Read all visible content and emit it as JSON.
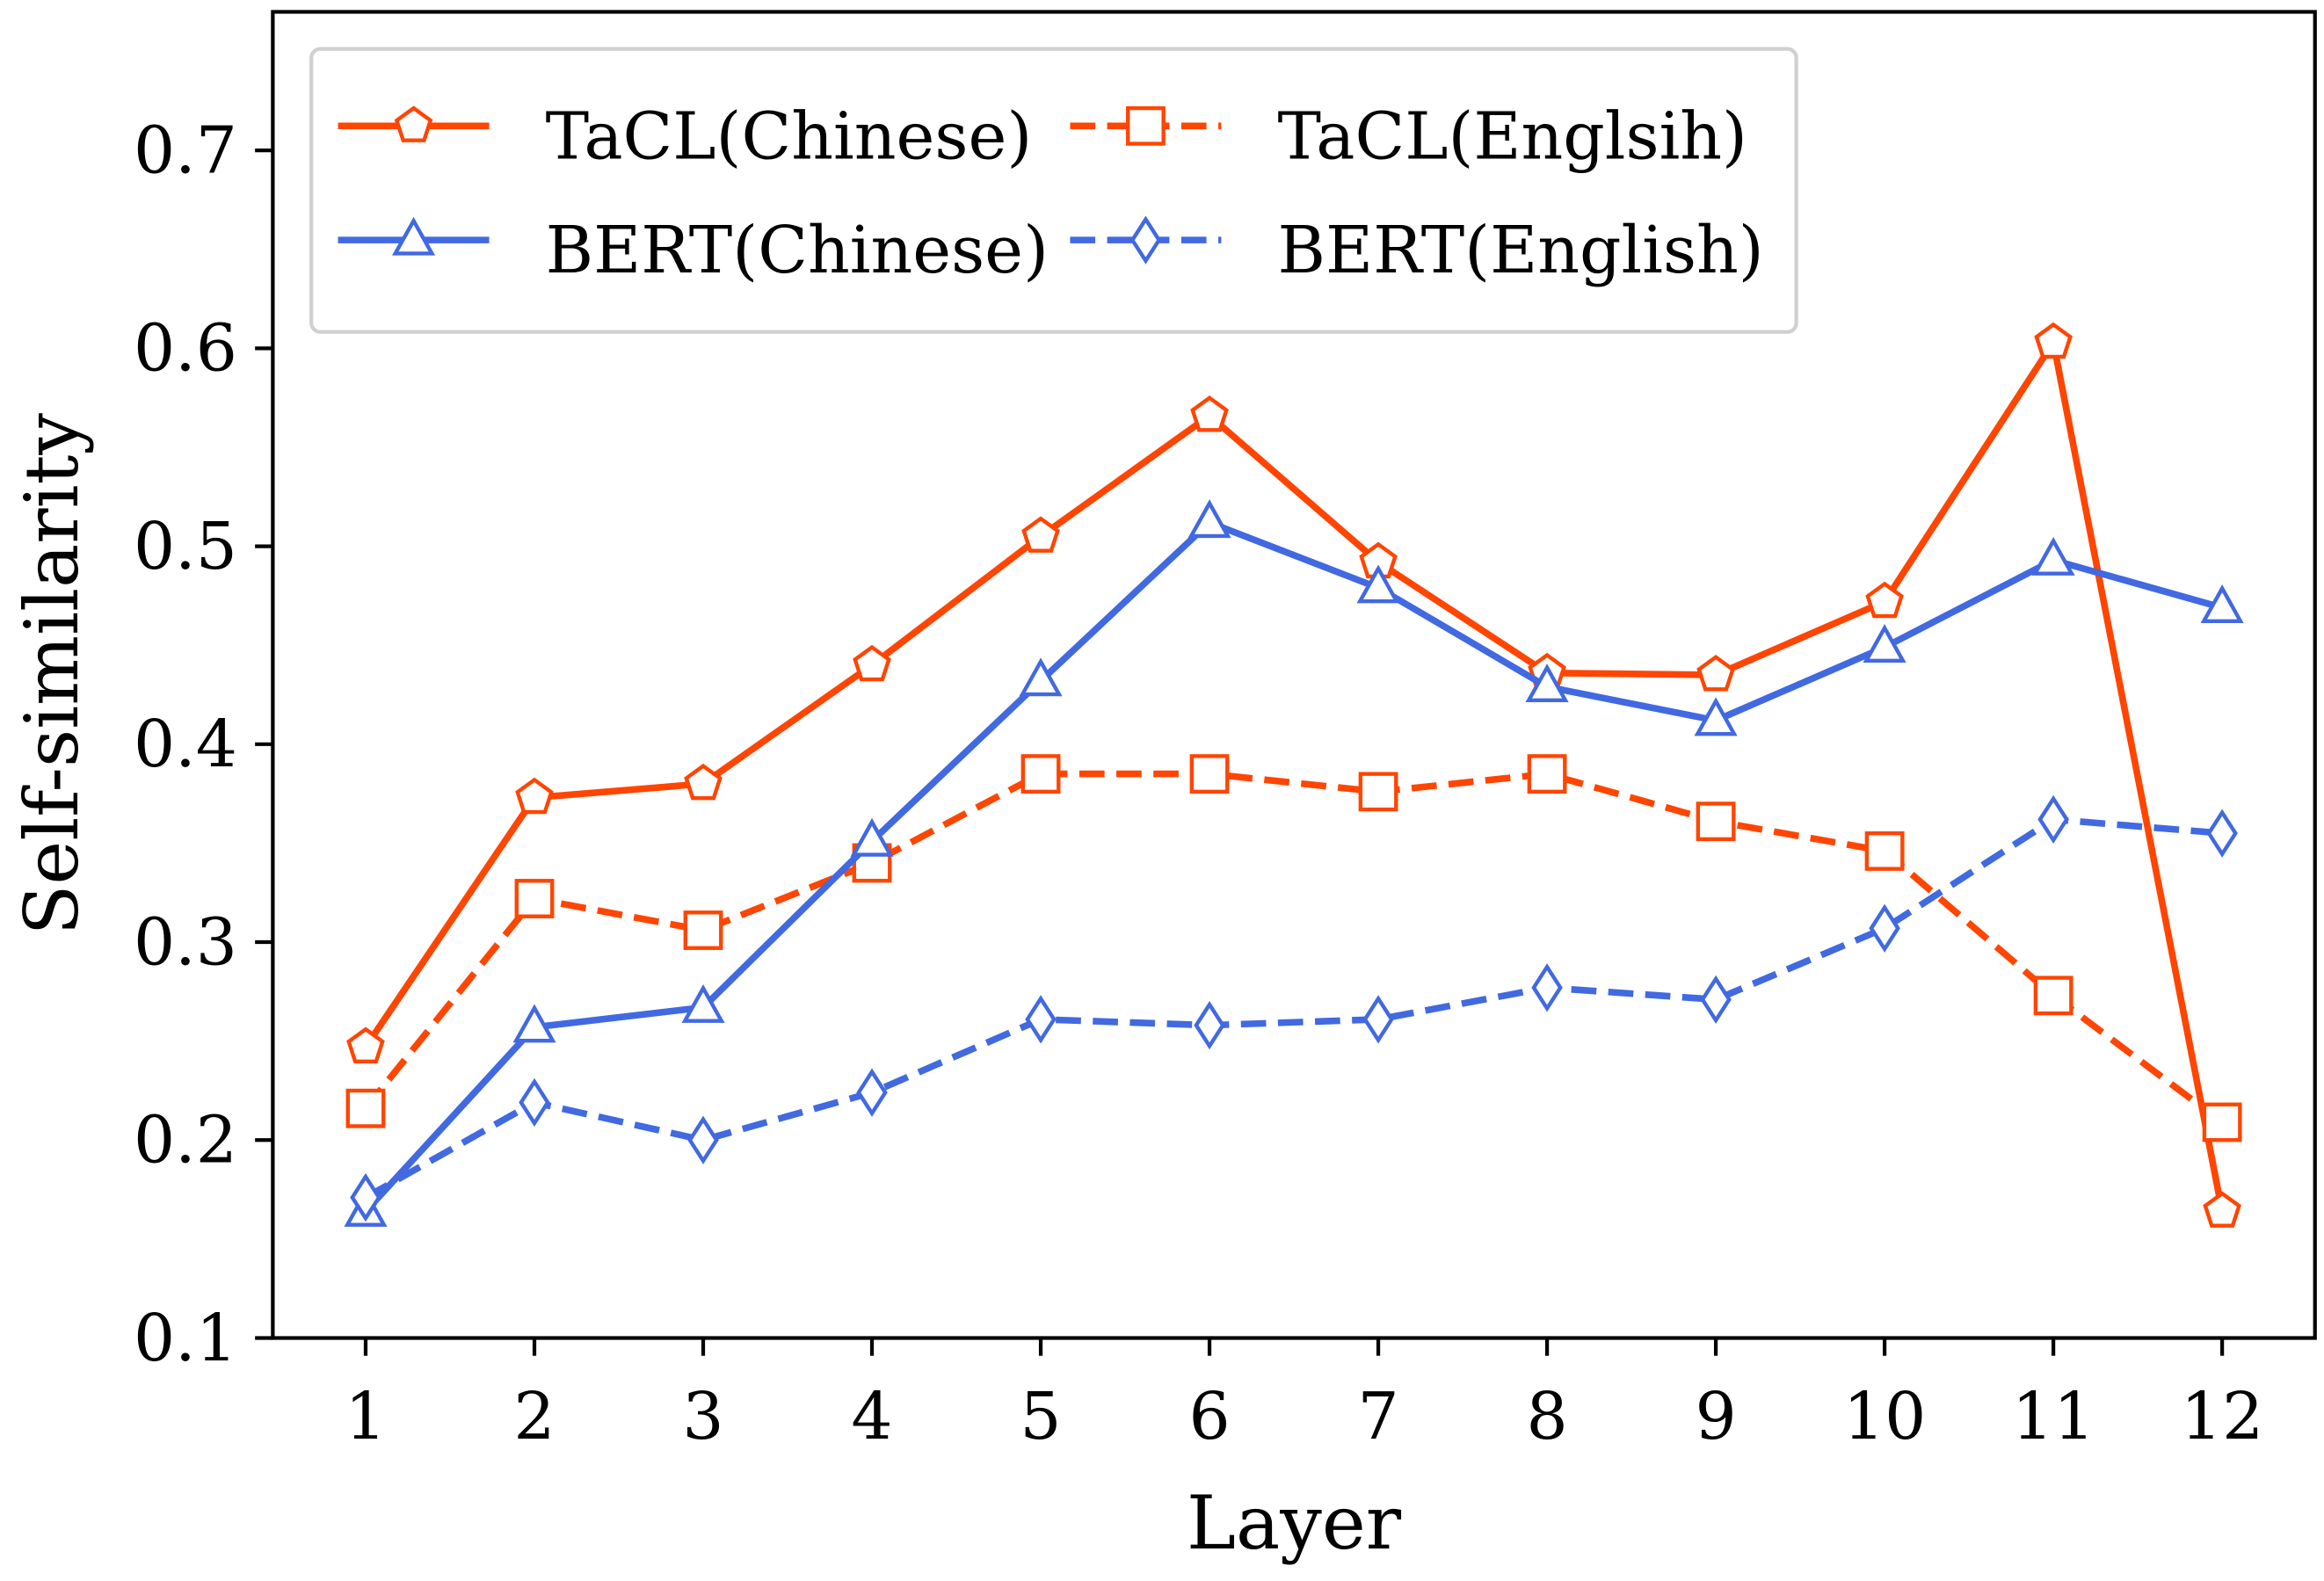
{
  "chart_data": {
    "type": "line",
    "title": "",
    "xlabel": "Layer",
    "ylabel": "Self-similarity",
    "x": [
      1,
      2,
      3,
      4,
      5,
      6,
      7,
      8,
      9,
      10,
      11,
      12
    ],
    "xticks": [
      "1",
      "2",
      "3",
      "4",
      "5",
      "6",
      "7",
      "8",
      "9",
      "10",
      "11",
      "12"
    ],
    "yticks": [
      "0.1",
      "0.2",
      "0.3",
      "0.4",
      "0.5",
      "0.6",
      "0.7"
    ],
    "ytick_values": [
      0.1,
      0.2,
      0.3,
      0.4,
      0.5,
      0.6,
      0.7
    ],
    "xlim": [
      0.45,
      12.55
    ],
    "ylim": [
      0.1,
      0.77
    ],
    "grid": false,
    "legend_placement": "top-left",
    "legend_columns": 2,
    "series": [
      {
        "name": "TaCL(Chinese)",
        "color": "#FF4500",
        "linestyle": "solid",
        "marker": "pentagon",
        "values": [
          0.247,
          0.373,
          0.38,
          0.44,
          0.505,
          0.566,
          0.492,
          0.436,
          0.435,
          0.472,
          0.603,
          0.164
        ]
      },
      {
        "name": "TaCL(Englsih)",
        "color": "#FF4500",
        "linestyle": "dashed",
        "marker": "square",
        "values": [
          0.216,
          0.322,
          0.306,
          0.34,
          0.385,
          0.385,
          0.376,
          0.385,
          0.361,
          0.346,
          0.273,
          0.209
        ]
      },
      {
        "name": "BERT(Chinese)",
        "color": "#4169E1",
        "linestyle": "solid",
        "marker": "triangle",
        "values": [
          0.164,
          0.257,
          0.267,
          0.351,
          0.432,
          0.512,
          0.479,
          0.429,
          0.412,
          0.449,
          0.493,
          0.469
        ]
      },
      {
        "name": "BERT(English)",
        "color": "#4169E1",
        "linestyle": "dashed",
        "marker": "diamond",
        "values": [
          0.171,
          0.219,
          0.2,
          0.224,
          0.261,
          0.258,
          0.261,
          0.277,
          0.271,
          0.307,
          0.362,
          0.355
        ]
      }
    ]
  }
}
